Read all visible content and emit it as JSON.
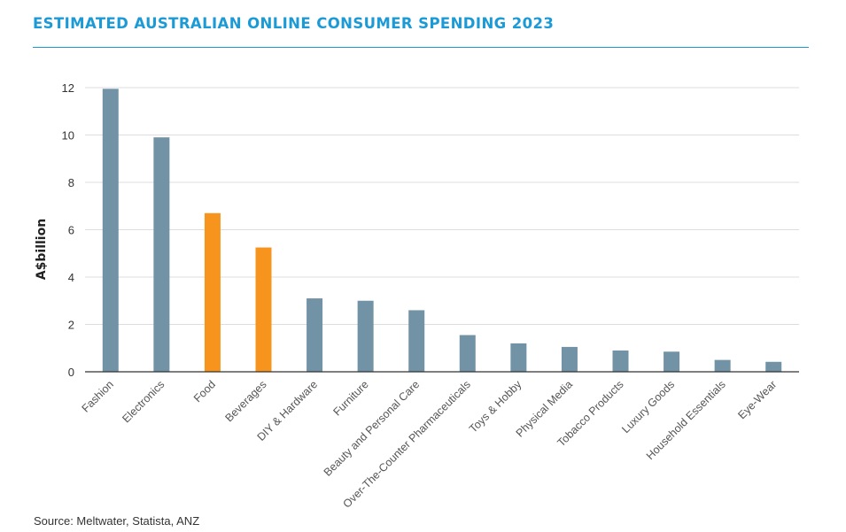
{
  "chart_data": {
    "type": "bar",
    "title": "ESTIMATED AUSTRALIAN ONLINE CONSUMER SPENDING 2023",
    "xlabel": "",
    "ylabel": "A$billion",
    "ylim": [
      0,
      12
    ],
    "yticks": [
      0,
      2,
      4,
      6,
      8,
      10,
      12
    ],
    "grid": true,
    "categories": [
      "Fashion",
      "Electronics",
      "Food",
      "Beverages",
      "DIY & Hardware",
      "Furniture",
      "Beauty and Personal Care",
      "Over-The-Counter Pharmaceuticals",
      "Toys & Hobby",
      "Physical Media",
      "Tobacco Products",
      "Luxury Goods",
      "Household Essentials",
      "Eye-Wear"
    ],
    "values": [
      11.95,
      9.9,
      6.7,
      5.25,
      3.1,
      3.0,
      2.6,
      1.55,
      1.2,
      1.05,
      0.9,
      0.85,
      0.5,
      0.42
    ],
    "bar_colors": [
      "#7293a6",
      "#7293a6",
      "#f7941d",
      "#f7941d",
      "#7293a6",
      "#7293a6",
      "#7293a6",
      "#7293a6",
      "#7293a6",
      "#7293a6",
      "#7293a6",
      "#7293a6",
      "#7293a6",
      "#7293a6"
    ]
  },
  "source": "Source: Meltwater, Statista, ANZ",
  "colors": {
    "title": "#1b9ad6",
    "bar_default": "#7293a6",
    "bar_highlight": "#f7941d",
    "grid": "#dddddd",
    "axis": "#333333"
  }
}
